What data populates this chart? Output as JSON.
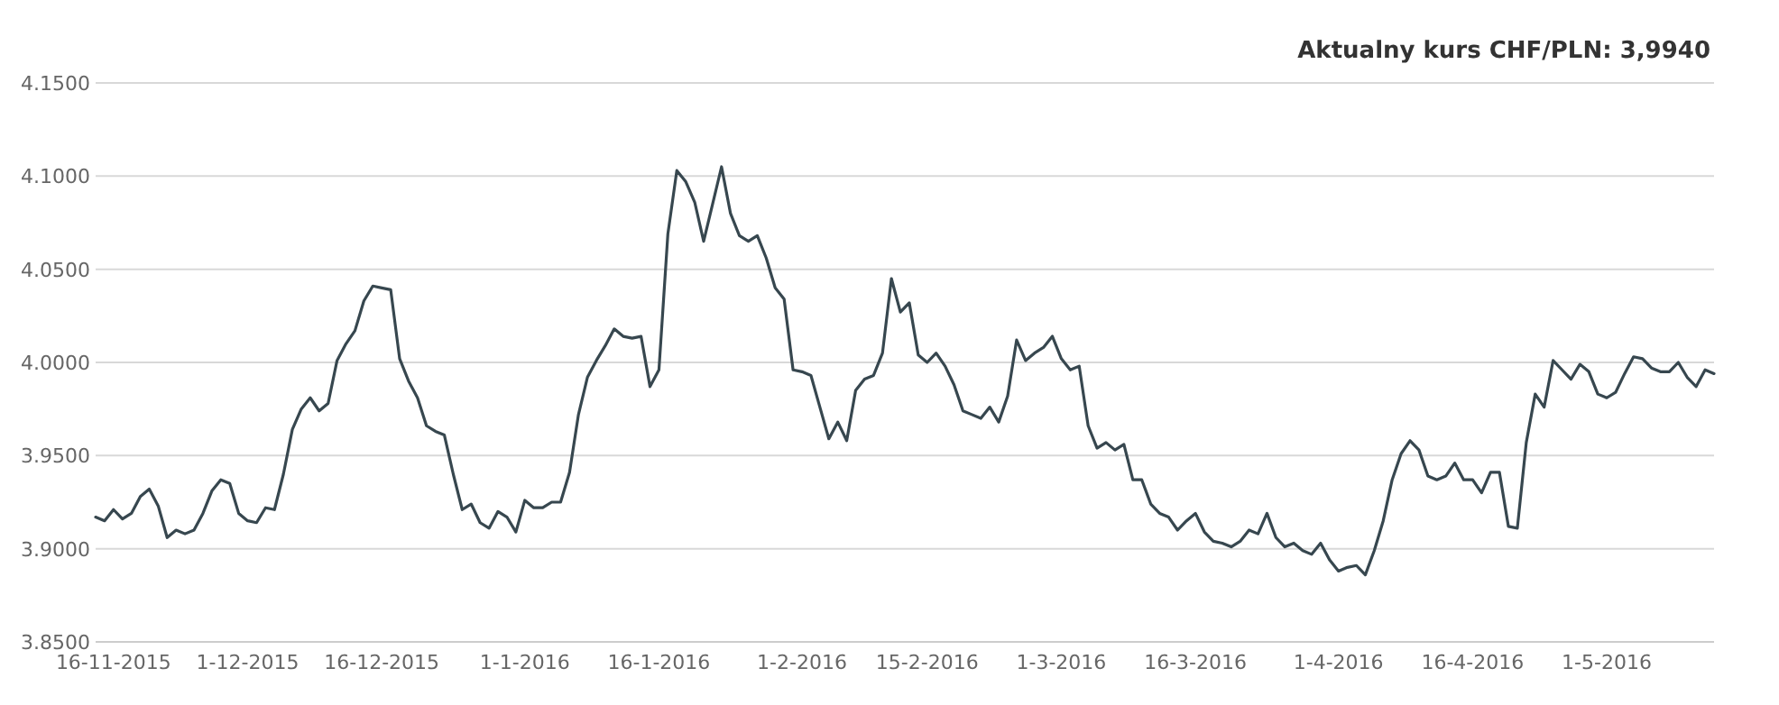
{
  "chart_data": {
    "type": "line",
    "title": "Aktualny kurs CHF/PLN: 3,9940",
    "xlim": [
      "2015-11-14",
      "2016-05-13"
    ],
    "xticks": [
      {
        "value": "2015-11-16",
        "label": "16-11-2015"
      },
      {
        "value": "2015-12-01",
        "label": "1-12-2015"
      },
      {
        "value": "2015-12-16",
        "label": "16-12-2015"
      },
      {
        "value": "2016-01-01",
        "label": "1-1-2016"
      },
      {
        "value": "2016-01-16",
        "label": "16-1-2016"
      },
      {
        "value": "2016-02-01",
        "label": "1-2-2016"
      },
      {
        "value": "2016-02-15",
        "label": "15-2-2016"
      },
      {
        "value": "2016-03-01",
        "label": "1-3-2016"
      },
      {
        "value": "2016-03-16",
        "label": "16-3-2016"
      },
      {
        "value": "2016-04-01",
        "label": "1-4-2016"
      },
      {
        "value": "2016-04-16",
        "label": "16-4-2016"
      },
      {
        "value": "2016-05-01",
        "label": "1-5-2016"
      }
    ],
    "ylim": [
      3.85,
      4.15
    ],
    "yticks": [
      {
        "value": 3.85,
        "label": "3.8500"
      },
      {
        "value": 3.9,
        "label": "3.9000"
      },
      {
        "value": 3.95,
        "label": "3.9500"
      },
      {
        "value": 4.0,
        "label": "4.0000"
      },
      {
        "value": 4.05,
        "label": "4.0500"
      },
      {
        "value": 4.1,
        "label": "4.1000"
      },
      {
        "value": 4.15,
        "label": "4.1500"
      }
    ],
    "grid": "y",
    "marker": "none",
    "line_style": "solid",
    "series": [
      {
        "color": "#37474f",
        "x": [
          "2015-11-14",
          "2015-11-15",
          "2015-11-16",
          "2015-11-17",
          "2015-11-18",
          "2015-11-19",
          "2015-11-20",
          "2015-11-21",
          "2015-11-22",
          "2015-11-23",
          "2015-11-24",
          "2015-11-25",
          "2015-11-26",
          "2015-11-27",
          "2015-11-28",
          "2015-11-29",
          "2015-11-30",
          "2015-12-01",
          "2015-12-02",
          "2015-12-03",
          "2015-12-04",
          "2015-12-05",
          "2015-12-06",
          "2015-12-07",
          "2015-12-08",
          "2015-12-09",
          "2015-12-10",
          "2015-12-11",
          "2015-12-12",
          "2015-12-13",
          "2015-12-14",
          "2015-12-15",
          "2015-12-16",
          "2015-12-17",
          "2015-12-18",
          "2015-12-19",
          "2015-12-20",
          "2015-12-21",
          "2015-12-22",
          "2015-12-23",
          "2015-12-24",
          "2015-12-25",
          "2015-12-26",
          "2015-12-27",
          "2015-12-28",
          "2015-12-29",
          "2015-12-30",
          "2015-12-31",
          "2016-01-01",
          "2016-01-02",
          "2016-01-03",
          "2016-01-04",
          "2016-01-05",
          "2016-01-06",
          "2016-01-07",
          "2016-01-08",
          "2016-01-09",
          "2016-01-10",
          "2016-01-11",
          "2016-01-12",
          "2016-01-13",
          "2016-01-14",
          "2016-01-15",
          "2016-01-16",
          "2016-01-17",
          "2016-01-18",
          "2016-01-19",
          "2016-01-20",
          "2016-01-21",
          "2016-01-22",
          "2016-01-23",
          "2016-01-24",
          "2016-01-25",
          "2016-01-26",
          "2016-01-27",
          "2016-01-28",
          "2016-01-29",
          "2016-01-30",
          "2016-01-31",
          "2016-02-01",
          "2016-02-02",
          "2016-02-03",
          "2016-02-04",
          "2016-02-05",
          "2016-02-06",
          "2016-02-07",
          "2016-02-08",
          "2016-02-09",
          "2016-02-10",
          "2016-02-11",
          "2016-02-12",
          "2016-02-13",
          "2016-02-14",
          "2016-02-15",
          "2016-02-16",
          "2016-02-17",
          "2016-02-18",
          "2016-02-19",
          "2016-02-20",
          "2016-02-21",
          "2016-02-22",
          "2016-02-23",
          "2016-02-24",
          "2016-02-25",
          "2016-02-26",
          "2016-02-27",
          "2016-02-28",
          "2016-02-29",
          "2016-03-01",
          "2016-03-02",
          "2016-03-03",
          "2016-03-04",
          "2016-03-05",
          "2016-03-06",
          "2016-03-07",
          "2016-03-08",
          "2016-03-09",
          "2016-03-10",
          "2016-03-11",
          "2016-03-12",
          "2016-03-13",
          "2016-03-14",
          "2016-03-15",
          "2016-03-16",
          "2016-03-17",
          "2016-03-18",
          "2016-03-19",
          "2016-03-20",
          "2016-03-21",
          "2016-03-22",
          "2016-03-23",
          "2016-03-24",
          "2016-03-25",
          "2016-03-26",
          "2016-03-27",
          "2016-03-28",
          "2016-03-29",
          "2016-03-30",
          "2016-03-31",
          "2016-04-01",
          "2016-04-02",
          "2016-04-03",
          "2016-04-04",
          "2016-04-05",
          "2016-04-06",
          "2016-04-07",
          "2016-04-08",
          "2016-04-09",
          "2016-04-10",
          "2016-04-11",
          "2016-04-12",
          "2016-04-13",
          "2016-04-14",
          "2016-04-15",
          "2016-04-16",
          "2016-04-17",
          "2016-04-18",
          "2016-04-19",
          "2016-04-20",
          "2016-04-21",
          "2016-04-22",
          "2016-04-23",
          "2016-04-24",
          "2016-04-25",
          "2016-04-26",
          "2016-04-27",
          "2016-04-28",
          "2016-04-29",
          "2016-04-30",
          "2016-05-01",
          "2016-05-02",
          "2016-05-03",
          "2016-05-04",
          "2016-05-05",
          "2016-05-06",
          "2016-05-07",
          "2016-05-08",
          "2016-05-09",
          "2016-05-10",
          "2016-05-11",
          "2016-05-12",
          "2016-05-13"
        ],
        "values": [
          3.917,
          3.915,
          3.921,
          3.916,
          3.919,
          3.928,
          3.932,
          3.923,
          3.906,
          3.91,
          3.908,
          3.91,
          3.919,
          3.931,
          3.937,
          3.935,
          3.919,
          3.915,
          3.914,
          3.922,
          3.921,
          3.94,
          3.964,
          3.975,
          3.981,
          3.974,
          3.978,
          4.001,
          4.01,
          4.017,
          4.033,
          4.041,
          4.04,
          4.039,
          4.002,
          3.99,
          3.981,
          3.966,
          3.963,
          3.961,
          3.94,
          3.921,
          3.924,
          3.914,
          3.911,
          3.92,
          3.917,
          3.909,
          3.926,
          3.922,
          3.922,
          3.925,
          3.925,
          3.941,
          3.972,
          3.992,
          4.001,
          4.009,
          4.018,
          4.014,
          4.013,
          4.014,
          3.987,
          3.996,
          4.069,
          4.103,
          4.097,
          4.086,
          4.065,
          4.085,
          4.105,
          4.08,
          4.068,
          4.065,
          4.068,
          4.056,
          4.04,
          4.034,
          3.996,
          3.995,
          3.993,
          3.976,
          3.959,
          3.968,
          3.958,
          3.985,
          3.991,
          3.993,
          4.005,
          4.045,
          4.027,
          4.032,
          4.004,
          4.0,
          4.005,
          3.998,
          3.988,
          3.974,
          3.972,
          3.97,
          3.976,
          3.968,
          3.982,
          4.012,
          4.001,
          4.005,
          4.008,
          4.014,
          4.002,
          3.996,
          3.998,
          3.966,
          3.954,
          3.957,
          3.953,
          3.956,
          3.937,
          3.937,
          3.924,
          3.919,
          3.917,
          3.91,
          3.915,
          3.919,
          3.909,
          3.904,
          3.903,
          3.901,
          3.904,
          3.91,
          3.908,
          3.919,
          3.906,
          3.901,
          3.903,
          3.899,
          3.897,
          3.903,
          3.894,
          3.888,
          3.89,
          3.891,
          3.886,
          3.899,
          3.915,
          3.937,
          3.951,
          3.958,
          3.953,
          3.939,
          3.937,
          3.939,
          3.946,
          3.937,
          3.937,
          3.93,
          3.941,
          3.941,
          3.912,
          3.911,
          3.957,
          3.983,
          3.976,
          4.001,
          3.996,
          3.991,
          3.999,
          3.995,
          3.983,
          3.981,
          3.984,
          3.994,
          4.003,
          4.002,
          3.997,
          3.995,
          3.995,
          4.0,
          3.992,
          3.987,
          3.996,
          3.994
        ]
      }
    ]
  }
}
